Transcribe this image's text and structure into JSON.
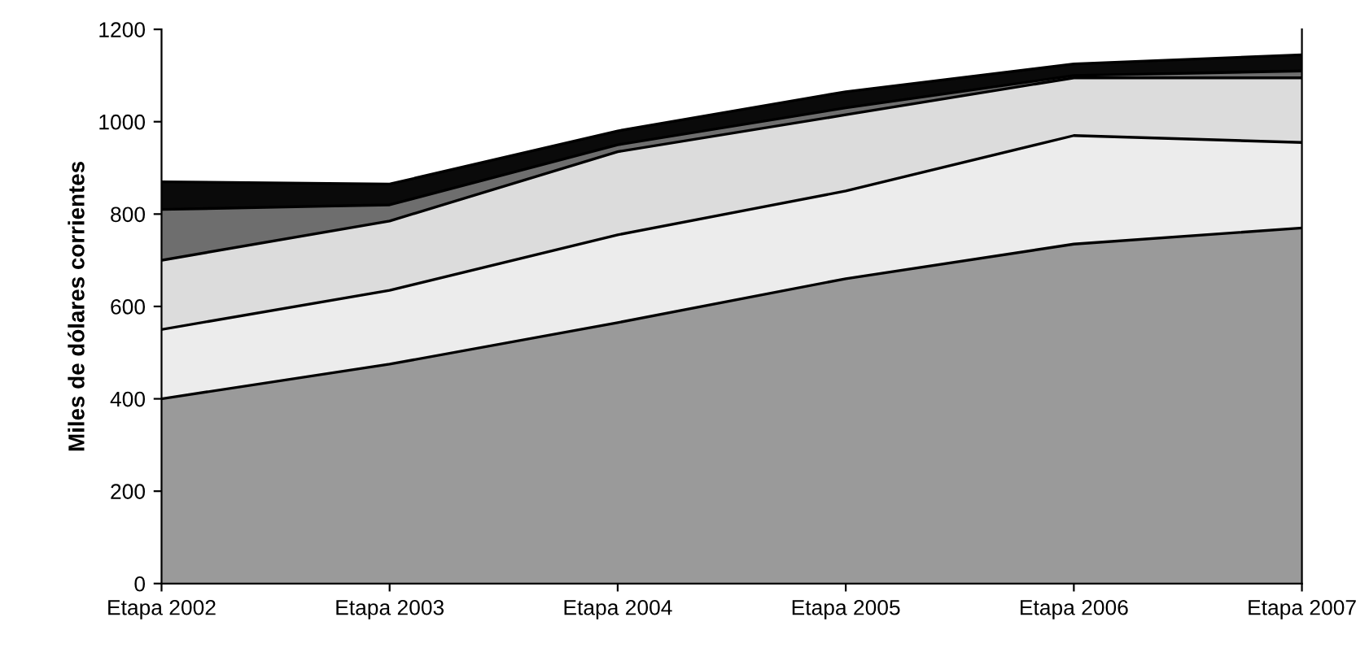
{
  "chart_data": {
    "type": "area",
    "stacked": true,
    "ylabel": "Miles de dólares corrientes",
    "categories": [
      "Etapa 2002",
      "Etapa 2003",
      "Etapa 2004",
      "Etapa 2005",
      "Etapa 2006",
      "Etapa 2007"
    ],
    "series": [
      {
        "color": "#9a9a9a",
        "values": [
          400,
          475,
          565,
          660,
          735,
          770
        ]
      },
      {
        "color": "#ececec",
        "values": [
          150,
          160,
          190,
          190,
          235,
          185
        ]
      },
      {
        "color": "#dcdcdc",
        "values": [
          150,
          150,
          180,
          165,
          125,
          140
        ]
      },
      {
        "color": "#6e6e6e",
        "values": [
          110,
          35,
          15,
          15,
          5,
          15
        ]
      },
      {
        "color": "#0a0a0a",
        "values": [
          60,
          45,
          30,
          35,
          25,
          35
        ]
      }
    ],
    "ylim": [
      0,
      1200
    ],
    "yticks": [
      0,
      200,
      400,
      600,
      800,
      1000,
      1200
    ],
    "grid": false,
    "legend": false
  }
}
